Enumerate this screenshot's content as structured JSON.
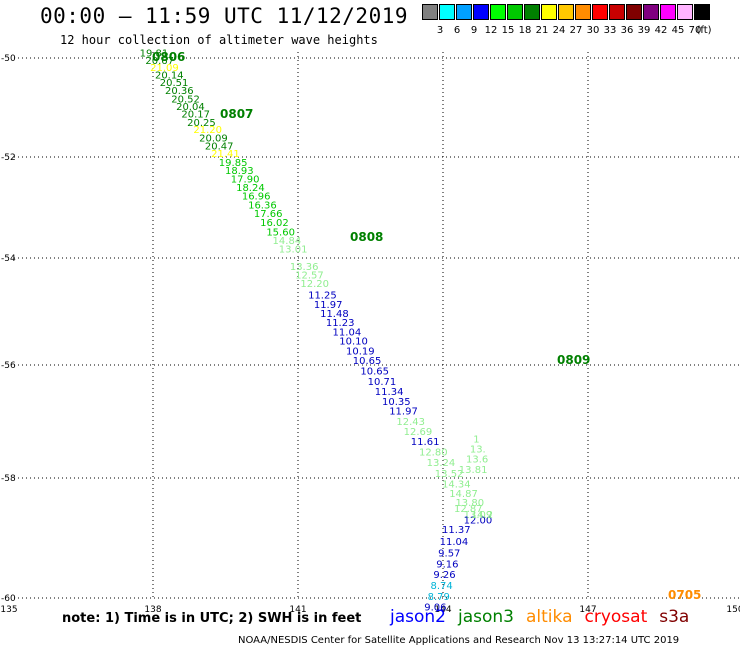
{
  "header": {
    "title": "00:00 — 11:59 UTC 11/12/2019",
    "subtitle": "12 hour collection of altimeter wave heights"
  },
  "colorbar": {
    "unit": "(ft)",
    "bins": [
      {
        "color": "#808080",
        "label": "3"
      },
      {
        "color": "#00ffff",
        "label": "6"
      },
      {
        "color": "#00a0ff",
        "label": "9"
      },
      {
        "color": "#0000ff",
        "label": "12"
      },
      {
        "color": "#00ff00",
        "label": "15"
      },
      {
        "color": "#00c800",
        "label": "18"
      },
      {
        "color": "#008000",
        "label": "21"
      },
      {
        "color": "#ffff00",
        "label": "24"
      },
      {
        "color": "#ffc800",
        "label": "27"
      },
      {
        "color": "#ff8c00",
        "label": "30"
      },
      {
        "color": "#ff0000",
        "label": "33"
      },
      {
        "color": "#c80000",
        "label": "36"
      },
      {
        "color": "#800000",
        "label": "39"
      },
      {
        "color": "#800080",
        "label": "42"
      },
      {
        "color": "#ff00ff",
        "label": "45"
      },
      {
        "color": "#ffb4ff",
        "label": "70"
      },
      {
        "color": "#000000",
        "label": ""
      }
    ]
  },
  "axes": {
    "lon_ticks": [
      "135",
      "138",
      "141",
      "144",
      "147",
      "150"
    ],
    "lat_ticks": [
      "-50",
      "-52",
      "-54",
      "-56",
      "-58",
      "-60"
    ]
  },
  "time_labels": [
    {
      "text": "0806",
      "color": "#008000"
    },
    {
      "text": "0807",
      "color": "#008000"
    },
    {
      "text": "0808",
      "color": "#008000"
    },
    {
      "text": "0809",
      "color": "#008000"
    },
    {
      "text": "0705",
      "color": "#ff8c00"
    }
  ],
  "observations": [
    {
      "v": "19.81",
      "lon": 137.7,
      "lat": -49.97,
      "c": "#008000"
    },
    {
      "v": "20.67",
      "lon": 137.82,
      "lat": -50.12,
      "c": "#008000"
    },
    {
      "v": "21.09",
      "lon": 137.92,
      "lat": -50.26,
      "c": "#ffff00"
    },
    {
      "v": "20.14",
      "lon": 138.02,
      "lat": -50.41,
      "c": "#008000"
    },
    {
      "v": "20.51",
      "lon": 138.12,
      "lat": -50.57,
      "c": "#008000"
    },
    {
      "v": "20.36",
      "lon": 138.23,
      "lat": -50.73,
      "c": "#008000"
    },
    {
      "v": "20.52",
      "lon": 138.36,
      "lat": -50.9,
      "c": "#008000"
    },
    {
      "v": "20.04",
      "lon": 138.46,
      "lat": -51.05,
      "c": "#008000"
    },
    {
      "v": "20.17",
      "lon": 138.57,
      "lat": -51.2,
      "c": "#008000"
    },
    {
      "v": "20.25",
      "lon": 138.69,
      "lat": -51.37,
      "c": "#008000"
    },
    {
      "v": "21.20",
      "lon": 138.82,
      "lat": -51.52,
      "c": "#ffff00"
    },
    {
      "v": "20.09",
      "lon": 138.94,
      "lat": -51.69,
      "c": "#008000"
    },
    {
      "v": "20.47",
      "lon": 139.06,
      "lat": -51.85,
      "c": "#008000"
    },
    {
      "v": "21.41",
      "lon": 139.19,
      "lat": -52.0,
      "c": "#ffff00"
    },
    {
      "v": "19.85",
      "lon": 139.35,
      "lat": -52.18,
      "c": "#00c800"
    },
    {
      "v": "18.93",
      "lon": 139.48,
      "lat": -52.34,
      "c": "#00c800"
    },
    {
      "v": "17.90",
      "lon": 139.6,
      "lat": -52.5,
      "c": "#00c800"
    },
    {
      "v": "18.24",
      "lon": 139.71,
      "lat": -52.67,
      "c": "#00c800"
    },
    {
      "v": "16.96",
      "lon": 139.83,
      "lat": -52.84,
      "c": "#00c800"
    },
    {
      "v": "16.36",
      "lon": 139.96,
      "lat": -53.02,
      "c": "#00c800"
    },
    {
      "v": "17.66",
      "lon": 140.08,
      "lat": -53.19,
      "c": "#00c800"
    },
    {
      "v": "16.02",
      "lon": 140.21,
      "lat": -53.37,
      "c": "#00c800"
    },
    {
      "v": "15.60",
      "lon": 140.34,
      "lat": -53.55,
      "c": "#00c800"
    },
    {
      "v": "14.84",
      "lon": 140.47,
      "lat": -53.72,
      "c": "#90ee90"
    },
    {
      "v": "13.01",
      "lon": 140.6,
      "lat": -53.89,
      "c": "#90ee90"
    },
    {
      "v": "13.36",
      "lon": 140.83,
      "lat": -54.22,
      "c": "#90ee90"
    },
    {
      "v": "12.57",
      "lon": 140.94,
      "lat": -54.38,
      "c": "#90ee90"
    },
    {
      "v": "12.20",
      "lon": 141.05,
      "lat": -54.54,
      "c": "#90ee90"
    },
    {
      "v": "11.25",
      "lon": 141.21,
      "lat": -54.76,
      "c": "#0000c0"
    },
    {
      "v": "11.97",
      "lon": 141.33,
      "lat": -54.93,
      "c": "#0000c0"
    },
    {
      "v": "11.48",
      "lon": 141.46,
      "lat": -55.1,
      "c": "#0000c0"
    },
    {
      "v": "11.23",
      "lon": 141.58,
      "lat": -55.27,
      "c": "#0000c0"
    },
    {
      "v": "11.04",
      "lon": 141.72,
      "lat": -55.45,
      "c": "#0000c0"
    },
    {
      "v": "10.10",
      "lon": 141.86,
      "lat": -55.62,
      "c": "#0000c0"
    },
    {
      "v": "10.19",
      "lon": 142.0,
      "lat": -55.8,
      "c": "#0000c0"
    },
    {
      "v": "10.65",
      "lon": 142.14,
      "lat": -55.98,
      "c": "#0000c0"
    },
    {
      "v": "10.65",
      "lon": 142.3,
      "lat": -56.17,
      "c": "#0000c0"
    },
    {
      "v": "10.71",
      "lon": 142.45,
      "lat": -56.35,
      "c": "#0000c0"
    },
    {
      "v": "11.34",
      "lon": 142.6,
      "lat": -56.53,
      "c": "#0000c0"
    },
    {
      "v": "10.35",
      "lon": 142.75,
      "lat": -56.71,
      "c": "#0000c0"
    },
    {
      "v": "11.97",
      "lon": 142.9,
      "lat": -56.88,
      "c": "#0000c0"
    },
    {
      "v": "12.43",
      "lon": 143.05,
      "lat": -57.06,
      "c": "#90ee90"
    },
    {
      "v": "12.69",
      "lon": 143.2,
      "lat": -57.24,
      "c": "#90ee90"
    },
    {
      "v": "11.61",
      "lon": 143.35,
      "lat": -57.42,
      "c": "#0000c0"
    },
    {
      "v": "12.80",
      "lon": 143.52,
      "lat": -57.6,
      "c": "#90ee90"
    },
    {
      "v": "13.24",
      "lon": 143.68,
      "lat": -57.79,
      "c": "#90ee90"
    },
    {
      "v": "13.52",
      "lon": 143.85,
      "lat": -57.98,
      "c": "#90ee90"
    },
    {
      "v": "14.34",
      "lon": 144.0,
      "lat": -58.16,
      "c": "#90ee90"
    },
    {
      "v": "14.87",
      "lon": 144.15,
      "lat": -58.32,
      "c": "#90ee90"
    },
    {
      "v": "13.80",
      "lon": 144.28,
      "lat": -58.47,
      "c": "#90ee90"
    },
    {
      "v": "12.87",
      "lon": 144.25,
      "lat": -58.57,
      "c": "#90ee90"
    },
    {
      "v": "13.09",
      "lon": 144.45,
      "lat": -58.67,
      "c": "#90ee90"
    },
    {
      "v": "11.37",
      "lon": 144.0,
      "lat": -58.92,
      "c": "#0000c0"
    },
    {
      "v": "11.04",
      "lon": 143.95,
      "lat": -59.12,
      "c": "#0000c0"
    },
    {
      "v": "9.57",
      "lon": 143.92,
      "lat": -59.31,
      "c": "#0000c0"
    },
    {
      "v": "9.16",
      "lon": 143.88,
      "lat": -59.49,
      "c": "#0000c0"
    },
    {
      "v": "9.26",
      "lon": 143.82,
      "lat": -59.67,
      "c": "#0000c0"
    },
    {
      "v": "8.74",
      "lon": 143.76,
      "lat": -59.85,
      "c": "#00b4d8"
    },
    {
      "v": "8.79",
      "lon": 143.7,
      "lat": -60.03,
      "c": "#00b4d8"
    },
    {
      "v": "9.06",
      "lon": 143.63,
      "lat": -60.21,
      "c": "#0000c0"
    },
    {
      "v": "12.00",
      "lon": 144.45,
      "lat": -58.76,
      "c": "#0000c0"
    },
    {
      "v": "13.81",
      "lon": 144.35,
      "lat": -57.91,
      "c": "#90ee90"
    },
    {
      "v": "13.6",
      "lon": 144.5,
      "lat": -57.73,
      "c": "#90ee90"
    },
    {
      "v": "13.",
      "lon": 144.58,
      "lat": -57.55,
      "c": "#90ee90"
    },
    {
      "v": "1",
      "lon": 144.65,
      "lat": -57.37,
      "c": "#90ee90"
    },
    {
      "v": "14.2",
      "lon": 144.6,
      "lat": -58.67,
      "c": "#90ee90"
    }
  ],
  "footer": {
    "note": "note: 1) Time is in UTC; 2) SWH is in feet",
    "legend": [
      {
        "name": "jason2",
        "color": "#0000ff"
      },
      {
        "name": "jason3",
        "color": "#008000"
      },
      {
        "name": "altika",
        "color": "#ff8c00"
      },
      {
        "name": "cryosat",
        "color": "#ff0000"
      },
      {
        "name": "s3a",
        "color": "#800000"
      }
    ],
    "credit": "NOAA/NESDIS Center for Satellite Applications and Research   Nov 13 13:27:14 UTC 2019"
  }
}
